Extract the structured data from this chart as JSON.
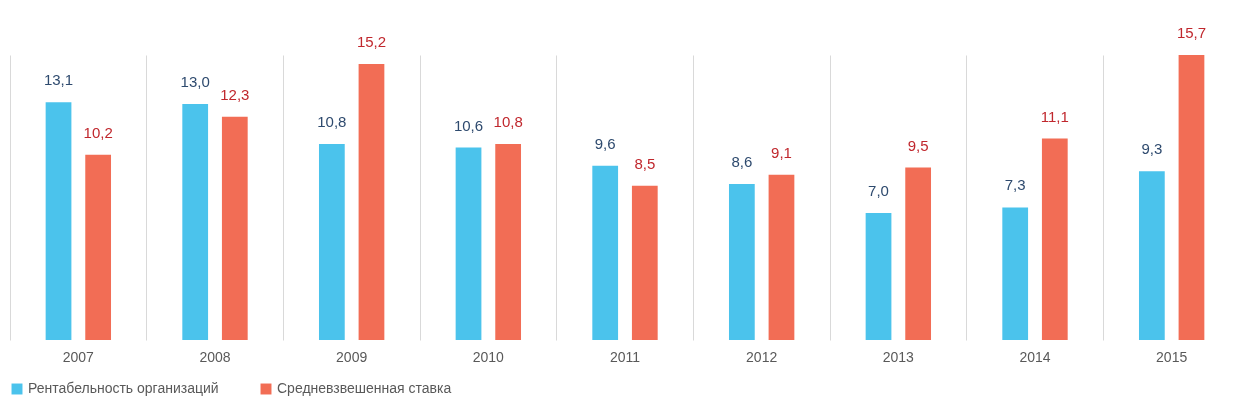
{
  "chart_data": {
    "type": "bar",
    "categories": [
      "2007",
      "2008",
      "2009",
      "2010",
      "2011",
      "2012",
      "2013",
      "2014",
      "2015"
    ],
    "series": [
      {
        "name": "Рентабельность организаций",
        "color": "#4bc3ec",
        "values": [
          13.1,
          13.0,
          10.8,
          10.6,
          9.6,
          8.6,
          7.0,
          7.3,
          9.3
        ],
        "value_labels": [
          "13,1",
          "13,0",
          "10,8",
          "10,6",
          "9,6",
          "8,6",
          "7,0",
          "7,3",
          "9,3"
        ]
      },
      {
        "name": "Средневзвешенная ставка",
        "color": "#f26d55",
        "values": [
          10.2,
          12.3,
          15.2,
          10.8,
          8.5,
          9.1,
          9.5,
          11.1,
          15.7
        ],
        "value_labels": [
          "10,2",
          "12,3",
          "15,2",
          "10,8",
          "8,5",
          "9,1",
          "9,5",
          "11,1",
          "15,7"
        ]
      }
    ],
    "tick_labels": "x",
    "grid": "x",
    "legend": "bottom"
  }
}
